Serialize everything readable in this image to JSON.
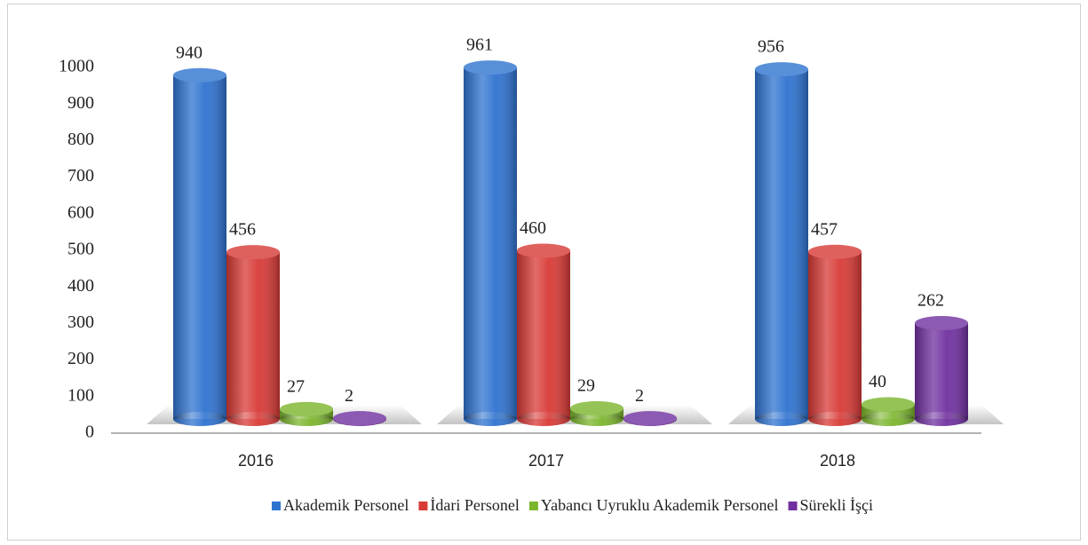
{
  "chart_data": {
    "type": "bar",
    "categories": [
      "2016",
      "2017",
      "2018"
    ],
    "series": [
      {
        "name": "Akademik Personel",
        "color": "#2f73d0",
        "values": [
          940,
          961,
          956
        ]
      },
      {
        "name": "İdari Personel",
        "color": "#d83a36",
        "values": [
          456,
          460,
          457
        ]
      },
      {
        "name": "Yabancı Uyruklu Akademik Personel",
        "color": "#7bb52c",
        "values": [
          27,
          29,
          40
        ]
      },
      {
        "name": "Sürekli İşçi",
        "color": "#7030a0",
        "values": [
          2,
          2,
          262
        ]
      }
    ],
    "ylim": [
      0,
      1000
    ],
    "yticks": [
      0,
      100,
      200,
      300,
      400,
      500,
      600,
      700,
      800,
      900,
      1000
    ],
    "grid": false,
    "legend": "bottom"
  }
}
